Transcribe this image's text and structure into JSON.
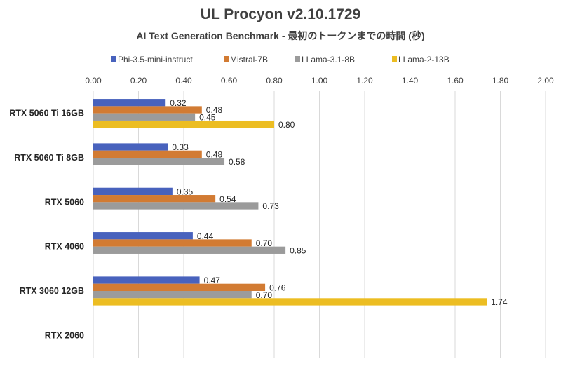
{
  "chart_data": {
    "type": "bar",
    "orientation": "horizontal",
    "title": "UL Procyon v2.10.1729",
    "subtitle": "AI Text Generation Benchmark - 最初のトークンまでの時間 (秒)",
    "xlabel": "",
    "ylabel": "",
    "xlim": [
      0,
      2.0
    ],
    "x_ticks": [
      "0.00",
      "0.20",
      "0.40",
      "0.60",
      "0.80",
      "1.00",
      "1.20",
      "1.40",
      "1.60",
      "1.80",
      "2.00"
    ],
    "grid": true,
    "legend_position": "top",
    "categories": [
      "RTX 5060 Ti 16GB",
      "RTX 5060 Ti 8GB",
      "RTX 5060",
      "RTX 4060",
      "RTX 3060 12GB",
      "RTX 2060"
    ],
    "series": [
      {
        "name": "Phi-3.5-mini-instruct",
        "color": "#4862bd",
        "values": [
          0.32,
          0.33,
          0.35,
          0.44,
          0.47,
          null
        ]
      },
      {
        "name": "Mistral-7B",
        "color": "#d27b33",
        "values": [
          0.48,
          0.48,
          0.54,
          0.7,
          0.76,
          null
        ]
      },
      {
        "name": "LLama-3.1-8B",
        "color": "#9b9b9b",
        "values": [
          0.45,
          0.58,
          0.73,
          0.85,
          0.7,
          null
        ]
      },
      {
        "name": "LLama-2-13B",
        "color": "#ecbd22",
        "values": [
          0.8,
          null,
          null,
          null,
          1.74,
          null
        ]
      }
    ]
  }
}
